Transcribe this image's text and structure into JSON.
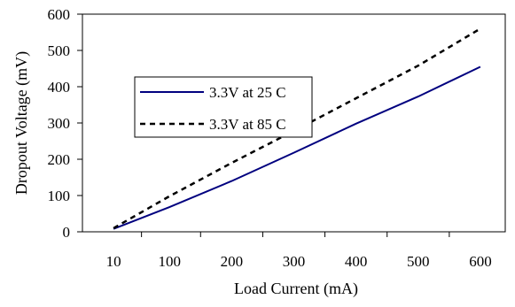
{
  "chart_data": {
    "type": "line",
    "title": "",
    "xlabel": "Load Current (mA)",
    "ylabel": "Dropout Voltage (mV)",
    "x_ticks": [
      "10",
      "100",
      "200",
      "300",
      "400",
      "500",
      "600"
    ],
    "x_tick_values": [
      10,
      100,
      200,
      300,
      400,
      500,
      600
    ],
    "y_ticks": [
      "0",
      "100",
      "200",
      "300",
      "400",
      "500",
      "600"
    ],
    "y_tick_values": [
      0,
      100,
      200,
      300,
      400,
      500,
      600
    ],
    "xlim": [
      -40,
      640
    ],
    "ylim": [
      0,
      600
    ],
    "grid": false,
    "legend_position": "upper-left",
    "series": [
      {
        "name": "3.3V at 25 C",
        "style": "solid",
        "color": "#00007f",
        "x": [
          10,
          100,
          200,
          300,
          400,
          500,
          600
        ],
        "y": [
          8,
          68,
          140,
          218,
          298,
          373,
          455
        ]
      },
      {
        "name": "3.3V at 85 C",
        "style": "dashed",
        "color": "#000000",
        "x": [
          10,
          100,
          200,
          300,
          400,
          500,
          600
        ],
        "y": [
          10,
          98,
          190,
          278,
          368,
          458,
          560
        ]
      }
    ]
  }
}
